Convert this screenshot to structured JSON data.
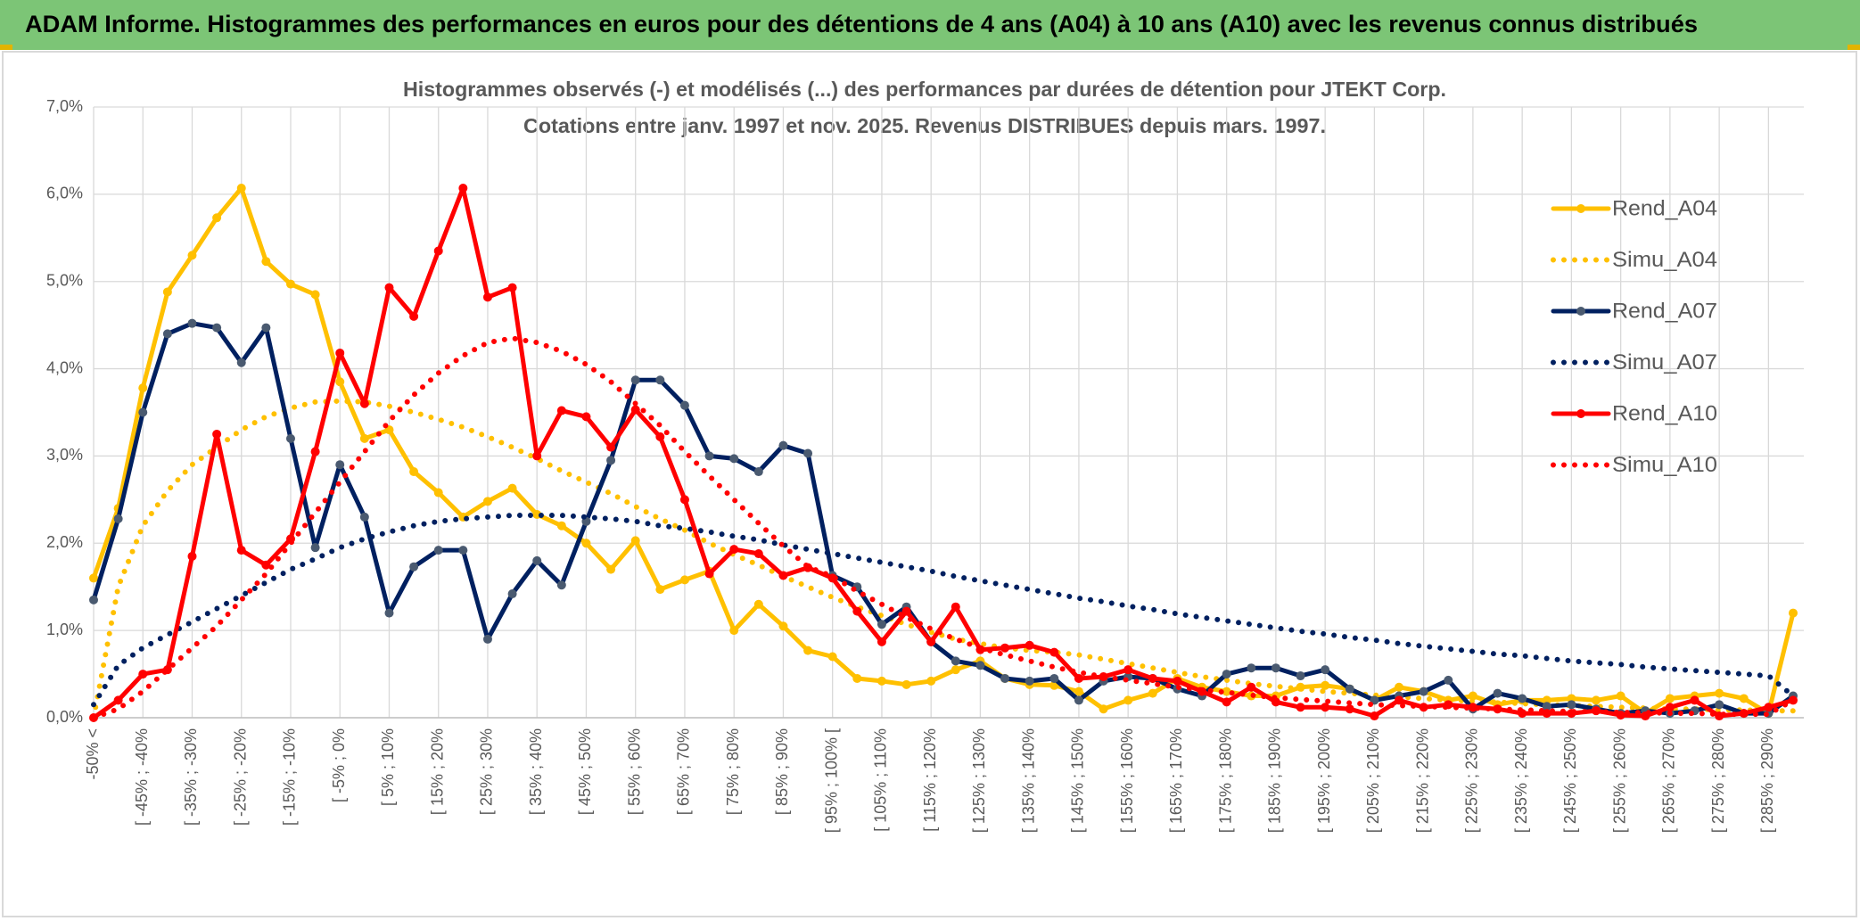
{
  "header": {
    "title": "ADAM Informe. Histogrammes des performances en euros pour des détentions de 4 ans (A04) à 10 ans (A10) avec les revenus connus distribués"
  },
  "chart_data": {
    "type": "line",
    "title": "Histogrammes observés (-) et modélisés (...) des performances par durées de détention pour JTEKT Corp.",
    "subtitle": "Cotations entre janv. 1997 et nov. 2025. Revenus DISTRIBUES depuis mars. 1997.",
    "categories": [
      "-50% <",
      null,
      "[ -45% ; -40%",
      null,
      "[ -35% ; -30%",
      null,
      "[ -25% ; -20%",
      null,
      "[ -15% ; -10%",
      null,
      "[ -5% ; 0%",
      null,
      "[ 5% ; 10%",
      null,
      "[ 15% ; 20%",
      null,
      "[ 25% ; 30%",
      null,
      "[ 35% ; 40%",
      null,
      "[ 45% ; 50%",
      null,
      "[ 55% ; 60%",
      null,
      "[ 65% ; 70%",
      null,
      "[ 75% ; 80%",
      null,
      "[ 85% ; 90%",
      null,
      "[ 95% ; 100% [",
      null,
      "[ 105% ; 110%",
      null,
      "[ 115% ; 120%",
      null,
      "[ 125% ; 130%",
      null,
      "[ 135% ; 140%",
      null,
      "[ 145% ; 150%",
      null,
      "[ 155% ; 160%",
      null,
      "[ 165% ; 170%",
      null,
      "[ 175% ; 180%",
      null,
      "[ 185% ; 190%",
      null,
      "[ 195% ; 200%",
      null,
      "[ 205% ; 210%",
      null,
      "[ 215% ; 220%",
      null,
      "[ 225% ; 230%",
      null,
      "[ 235% ; 240%",
      null,
      "[ 245% ; 250%",
      null,
      "[ 255% ; 260%",
      null,
      "[ 265% ; 270%",
      null,
      "[ 275% ; 280%",
      null,
      "[ 285% ; 290%",
      null
    ],
    "series": [
      {
        "name": "Rend_A04",
        "color": "#FFC000",
        "dash": "solid",
        "marker": true,
        "values": [
          1.6,
          2.4,
          3.78,
          4.88,
          5.3,
          5.73,
          6.07,
          5.23,
          4.97,
          4.85,
          3.85,
          3.2,
          3.3,
          2.82,
          2.58,
          2.3,
          2.48,
          2.63,
          2.33,
          2.2,
          2.0,
          1.7,
          2.03,
          1.47,
          1.58,
          1.68,
          1.0,
          1.3,
          1.05,
          0.77,
          0.7,
          0.45,
          0.42,
          0.38,
          0.42,
          0.55,
          0.65,
          0.45,
          0.38,
          0.37,
          0.3,
          0.1,
          0.2,
          0.28,
          0.45,
          0.35,
          0.3,
          0.25,
          0.25,
          0.35,
          0.37,
          0.33,
          0.2,
          0.35,
          0.3,
          0.2,
          0.25,
          0.15,
          0.2,
          0.2,
          0.22,
          0.2,
          0.25,
          0.05,
          0.22,
          0.25,
          0.28,
          0.22,
          0.05,
          1.2
        ]
      },
      {
        "name": "Simu_A04",
        "color": "#FFC000",
        "dash": "dotted",
        "marker": false,
        "values": [
          0.0,
          1.5,
          2.2,
          2.6,
          2.9,
          3.1,
          3.3,
          3.45,
          3.55,
          3.62,
          3.63,
          3.62,
          3.57,
          3.5,
          3.42,
          3.33,
          3.22,
          3.1,
          2.97,
          2.83,
          2.7,
          2.57,
          2.42,
          2.28,
          2.15,
          2.0,
          1.87,
          1.75,
          1.62,
          1.5,
          1.38,
          1.27,
          1.17,
          1.07,
          0.98,
          0.9,
          0.85,
          0.8,
          0.77,
          0.75,
          0.72,
          0.67,
          0.62,
          0.57,
          0.52,
          0.47,
          0.43,
          0.39,
          0.36,
          0.33,
          0.3,
          0.28,
          0.26,
          0.24,
          0.22,
          0.2,
          0.19,
          0.18,
          0.16,
          0.15,
          0.14,
          0.13,
          0.12,
          0.11,
          0.1,
          0.1,
          0.09,
          0.09,
          0.08,
          0.08
        ]
      },
      {
        "name": "Rend_A07",
        "color": "#002060",
        "dash": "solid",
        "marker": true,
        "marker_color": "#4A5A70",
        "values": [
          1.35,
          2.28,
          3.5,
          4.4,
          4.52,
          4.47,
          4.07,
          4.47,
          3.2,
          1.95,
          2.9,
          2.3,
          1.2,
          1.73,
          1.92,
          1.92,
          0.9,
          1.42,
          1.8,
          1.52,
          2.25,
          2.95,
          3.87,
          3.87,
          3.58,
          3.0,
          2.97,
          2.82,
          3.12,
          3.03,
          1.63,
          1.5,
          1.07,
          1.27,
          0.87,
          0.65,
          0.6,
          0.45,
          0.42,
          0.45,
          0.2,
          0.42,
          0.47,
          0.45,
          0.33,
          0.25,
          0.5,
          0.57,
          0.57,
          0.48,
          0.55,
          0.33,
          0.2,
          0.25,
          0.3,
          0.43,
          0.1,
          0.28,
          0.22,
          0.13,
          0.15,
          0.1,
          0.05,
          0.08,
          0.05,
          0.08,
          0.15,
          0.05,
          0.05,
          0.25
        ]
      },
      {
        "name": "Simu_A07",
        "color": "#002060",
        "dash": "dotted",
        "marker": false,
        "values": [
          0.15,
          0.6,
          0.8,
          0.95,
          1.1,
          1.25,
          1.4,
          1.55,
          1.7,
          1.82,
          1.95,
          2.05,
          2.13,
          2.2,
          2.25,
          2.28,
          2.3,
          2.32,
          2.32,
          2.32,
          2.3,
          2.28,
          2.25,
          2.2,
          2.17,
          2.13,
          2.08,
          2.04,
          1.98,
          1.93,
          1.88,
          1.83,
          1.78,
          1.73,
          1.68,
          1.62,
          1.57,
          1.52,
          1.47,
          1.42,
          1.37,
          1.33,
          1.28,
          1.24,
          1.19,
          1.15,
          1.11,
          1.07,
          1.03,
          0.99,
          0.96,
          0.92,
          0.89,
          0.85,
          0.82,
          0.79,
          0.76,
          0.73,
          0.71,
          0.68,
          0.65,
          0.63,
          0.61,
          0.58,
          0.56,
          0.54,
          0.52,
          0.5,
          0.48,
          0.25
        ]
      },
      {
        "name": "Rend_A10",
        "color": "#FF0000",
        "dash": "solid",
        "marker": true,
        "values": [
          0.0,
          0.2,
          0.5,
          0.55,
          1.85,
          3.25,
          1.92,
          1.75,
          2.05,
          3.05,
          4.18,
          3.6,
          4.93,
          4.6,
          5.35,
          6.07,
          4.82,
          4.93,
          3.0,
          3.52,
          3.45,
          3.1,
          3.53,
          3.22,
          2.5,
          1.65,
          1.93,
          1.88,
          1.63,
          1.72,
          1.6,
          1.22,
          0.87,
          1.22,
          0.87,
          1.27,
          0.78,
          0.8,
          0.83,
          0.75,
          0.45,
          0.47,
          0.55,
          0.45,
          0.42,
          0.3,
          0.18,
          0.35,
          0.18,
          0.12,
          0.12,
          0.1,
          0.02,
          0.2,
          0.12,
          0.15,
          0.12,
          0.1,
          0.05,
          0.05,
          0.05,
          0.08,
          0.03,
          0.02,
          0.12,
          0.2,
          0.02,
          0.05,
          0.12,
          0.2
        ]
      },
      {
        "name": "Simu_A10",
        "color": "#FF0000",
        "dash": "dotted",
        "marker": false,
        "values": [
          0.0,
          0.1,
          0.3,
          0.55,
          0.8,
          1.05,
          1.35,
          1.65,
          2.0,
          2.35,
          2.7,
          3.05,
          3.4,
          3.7,
          3.95,
          4.15,
          4.3,
          4.35,
          4.3,
          4.2,
          4.05,
          3.85,
          3.6,
          3.35,
          3.05,
          2.77,
          2.5,
          2.23,
          1.97,
          1.73,
          1.62,
          1.45,
          1.3,
          1.15,
          1.02,
          0.9,
          0.8,
          0.72,
          0.65,
          0.58,
          0.52,
          0.47,
          0.43,
          0.39,
          0.35,
          0.32,
          0.29,
          0.26,
          0.23,
          0.21,
          0.19,
          0.17,
          0.15,
          0.14,
          0.13,
          0.12,
          0.11,
          0.1,
          0.09,
          0.08,
          0.07,
          0.07,
          0.06,
          0.06,
          0.05,
          0.05,
          0.04,
          0.04,
          0.04,
          0.2
        ]
      }
    ],
    "ylim": [
      0,
      7
    ],
    "yticks": [
      {
        "value": 0,
        "label": "0,0%"
      },
      {
        "value": 1,
        "label": "1,0%"
      },
      {
        "value": 2,
        "label": "2,0%"
      },
      {
        "value": 3,
        "label": "3,0%"
      },
      {
        "value": 4,
        "label": "4,0%"
      },
      {
        "value": 5,
        "label": "5,0%"
      },
      {
        "value": 6,
        "label": "6,0%"
      },
      {
        "value": 7,
        "label": "7,0%"
      }
    ],
    "grid": true,
    "legend": "right"
  }
}
